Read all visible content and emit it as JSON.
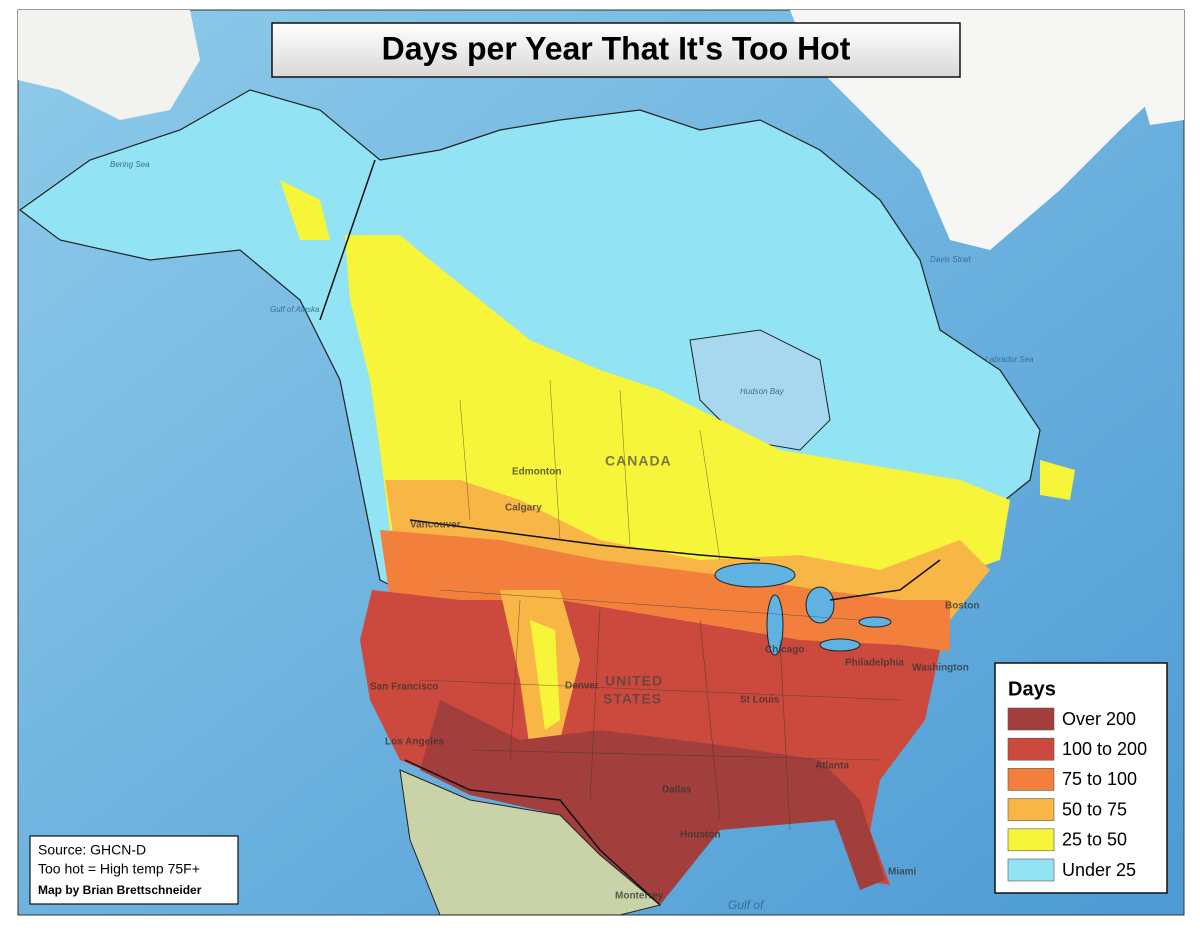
{
  "title": "Days per Year That It's Too Hot",
  "legend": {
    "title": "Days",
    "items": [
      {
        "label": "Over 200",
        "color": "#a23f3d"
      },
      {
        "label": "100 to 200",
        "color": "#cb4a3d"
      },
      {
        "label": "75 to 100",
        "color": "#f27f3b"
      },
      {
        "label": "50 to 75",
        "color": "#f8b646"
      },
      {
        "label": "25 to 50",
        "color": "#f7f53a"
      },
      {
        "label": "Under 25",
        "color": "#92e3f3"
      }
    ]
  },
  "source": {
    "lines": [
      "Source: GHCN-D",
      "Too hot = High temp 75F+"
    ],
    "credit": "Map by Brian Brettschneider"
  },
  "places": {
    "countries": [
      "CANADA",
      "UNITED",
      "STATES"
    ],
    "waters": [
      "Bering Sea",
      "Gulf of Alaska",
      "Hudson Bay",
      "Labrador Sea",
      "Davis Strait",
      "Gulf of"
    ],
    "cities": [
      "Edmonton",
      "Calgary",
      "Vancouver",
      "Chicago",
      "Denver",
      "St Louis",
      "Dallas",
      "Houston",
      "Atlanta",
      "Philadelphia",
      "Boston",
      "Los Angeles",
      "San Francisco",
      "Miami",
      "Monterrey",
      "Washington"
    ]
  }
}
